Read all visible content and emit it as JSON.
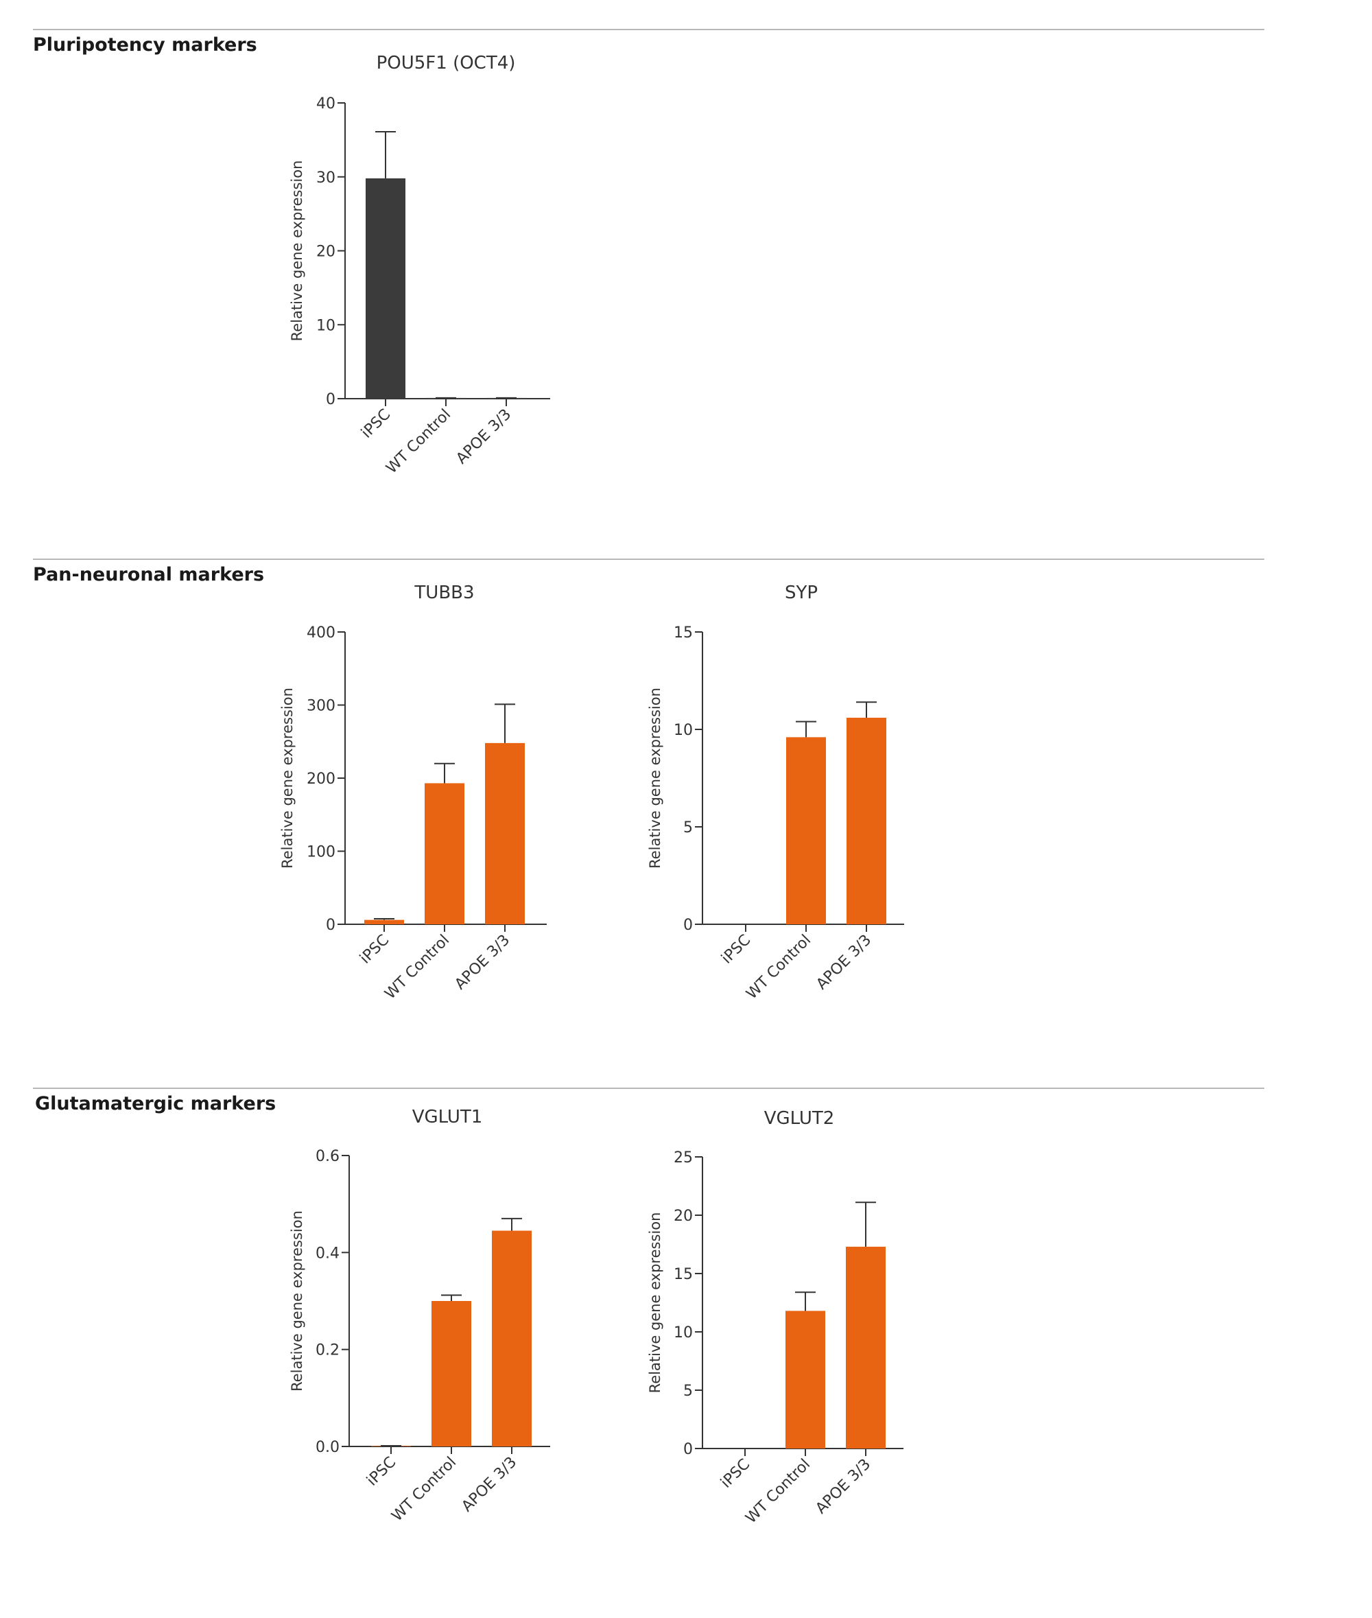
{
  "sections": [
    {
      "title": "Pluripotency markers"
    },
    {
      "title": "Pan-neuronal markers"
    },
    {
      "title": "Glutamatergic markers"
    }
  ],
  "colors": {
    "dark": "#3b3b3b",
    "orange": "#e86412",
    "axis": "#333333",
    "rule": "#b8b8b8"
  },
  "chart_data": [
    {
      "type": "bar",
      "title": "POU5F1 (OCT4)",
      "ylabel": "Relative gene expression",
      "categories": [
        "iPSC",
        "WT Control",
        "APOE 3/3"
      ],
      "values": [
        29.8,
        0.1,
        0.1
      ],
      "error": [
        6.3,
        0,
        0
      ],
      "ylim": [
        0,
        40
      ],
      "yticks": [
        "0",
        "10",
        "20",
        "30",
        "40"
      ],
      "bar_colors": [
        "#3b3b3b",
        "#3b3b3b",
        "#3b3b3b"
      ]
    },
    {
      "type": "bar",
      "title": "TUBB3",
      "ylabel": "Relative gene expression",
      "categories": [
        "iPSC",
        "WT Control",
        "APOE 3/3"
      ],
      "values": [
        6,
        193,
        248
      ],
      "error": [
        1.5,
        27,
        53
      ],
      "ylim": [
        0,
        400
      ],
      "yticks": [
        "0",
        "100",
        "200",
        "300",
        "400"
      ],
      "bar_colors": [
        "#e86412",
        "#e86412",
        "#e86412"
      ]
    },
    {
      "type": "bar",
      "title": "SYP",
      "ylabel": "Relative gene expression",
      "categories": [
        "iPSC",
        "WT Control",
        "APOE 3/3"
      ],
      "values": [
        0,
        9.6,
        10.6
      ],
      "error": [
        0,
        0.8,
        0.8
      ],
      "ylim": [
        0,
        15
      ],
      "yticks": [
        "0",
        "5",
        "10",
        "15"
      ],
      "bar_colors": [
        "#e86412",
        "#e86412",
        "#e86412"
      ]
    },
    {
      "type": "bar",
      "title": "VGLUT1",
      "ylabel": "Relative gene expression",
      "categories": [
        "iPSC",
        "WT Control",
        "APOE 3/3"
      ],
      "values": [
        0.001,
        0.3,
        0.445
      ],
      "error": [
        0.0005,
        0.012,
        0.025
      ],
      "ylim": [
        0,
        0.6
      ],
      "yticks": [
        "0.0",
        "0.2",
        "0.4",
        "0.6"
      ],
      "bar_colors": [
        "#e86412",
        "#e86412",
        "#e86412"
      ]
    },
    {
      "type": "bar",
      "title": "VGLUT2",
      "ylabel": "Relative gene expression",
      "categories": [
        "iPSC",
        "WT Control",
        "APOE 3/3"
      ],
      "values": [
        0,
        11.8,
        17.3
      ],
      "error": [
        0,
        1.6,
        3.8
      ],
      "ylim": [
        0,
        25
      ],
      "yticks": [
        "0",
        "5",
        "10",
        "15",
        "20",
        "25"
      ],
      "bar_colors": [
        "#e86412",
        "#e86412",
        "#e86412"
      ]
    }
  ]
}
